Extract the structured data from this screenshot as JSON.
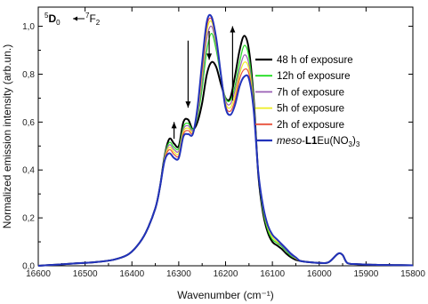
{
  "chart_data": {
    "type": "line",
    "title": "",
    "xlabel": "Wavenumber (cm⁻¹)",
    "ylabel": "Normalized emission intensity (arb.un.)",
    "xlim": [
      16600,
      15800
    ],
    "ylim": [
      0.0,
      1.08
    ],
    "x_reversed": true,
    "grid": false,
    "legend_position": "top-right",
    "x_ticks": [
      {
        "value": 16600,
        "label": "16600"
      },
      {
        "value": 16500,
        "label": "16500"
      },
      {
        "value": 16400,
        "label": "16400"
      },
      {
        "value": 16300,
        "label": "16300"
      },
      {
        "value": 16200,
        "label": "16200"
      },
      {
        "value": 16100,
        "label": "16100"
      },
      {
        "value": 16000,
        "label": "16000"
      },
      {
        "value": 15900,
        "label": "15900"
      },
      {
        "value": 15800,
        "label": "15800"
      }
    ],
    "y_ticks": [
      {
        "value": 0.0,
        "label": "0,0"
      },
      {
        "value": 0.2,
        "label": "0,2"
      },
      {
        "value": 0.4,
        "label": "0,4"
      },
      {
        "value": 0.6,
        "label": "0,6"
      },
      {
        "value": 0.8,
        "label": "0,8"
      },
      {
        "value": 1.0,
        "label": "1,0"
      }
    ],
    "transition_label": {
      "from_sup": "5",
      "from_main": "D",
      "from_sub": "0",
      "to_sup": "7",
      "to_main": "F",
      "to_sub": "2"
    },
    "arrows": [
      {
        "direction": "up",
        "x": 16310,
        "y_from": 0.53,
        "y_to": 0.6
      },
      {
        "direction": "down",
        "x": 16280,
        "y_from": 0.94,
        "y_to": 0.66
      },
      {
        "direction": "down",
        "x": 16235,
        "y_from": 0.98,
        "y_to": 0.86
      },
      {
        "direction": "up",
        "x": 16185,
        "y_from": 0.69,
        "y_to": 1.0
      }
    ],
    "x": [
      16600,
      16560,
      16520,
      16480,
      16440,
      16410,
      16390,
      16370,
      16350,
      16340,
      16330,
      16320,
      16310,
      16300,
      16290,
      16280,
      16270,
      16260,
      16250,
      16240,
      16230,
      16220,
      16210,
      16200,
      16190,
      16180,
      16170,
      16160,
      16150,
      16140,
      16130,
      16120,
      16110,
      16100,
      16090,
      16080,
      16070,
      16060,
      16050,
      16040,
      16020,
      16000,
      15980,
      15960,
      15950,
      15940,
      15920,
      15880,
      15840,
      15800
    ],
    "series": [
      {
        "name": "48 h of exposure",
        "color": "#000000",
        "values": [
          0.0,
          0.005,
          0.01,
          0.015,
          0.025,
          0.045,
          0.08,
          0.14,
          0.24,
          0.33,
          0.46,
          0.53,
          0.51,
          0.5,
          0.6,
          0.61,
          0.57,
          0.6,
          0.68,
          0.8,
          0.85,
          0.83,
          0.76,
          0.7,
          0.7,
          0.79,
          0.9,
          0.96,
          0.9,
          0.7,
          0.38,
          0.22,
          0.14,
          0.1,
          0.085,
          0.07,
          0.05,
          0.035,
          0.025,
          0.02,
          0.015,
          0.012,
          0.015,
          0.05,
          0.045,
          0.012,
          0.007,
          0.004,
          0.003,
          0.002
        ]
      },
      {
        "name": "12h of exposure",
        "color": "#22dd22",
        "values": [
          0.0,
          0.005,
          0.01,
          0.015,
          0.025,
          0.045,
          0.08,
          0.14,
          0.24,
          0.33,
          0.46,
          0.515,
          0.495,
          0.49,
          0.58,
          0.595,
          0.57,
          0.62,
          0.74,
          0.9,
          0.97,
          0.9,
          0.79,
          0.7,
          0.69,
          0.75,
          0.85,
          0.92,
          0.87,
          0.69,
          0.39,
          0.23,
          0.15,
          0.11,
          0.095,
          0.08,
          0.06,
          0.04,
          0.03,
          0.02,
          0.015,
          0.012,
          0.015,
          0.05,
          0.045,
          0.012,
          0.007,
          0.004,
          0.003,
          0.002
        ]
      },
      {
        "name": "7h of exposure",
        "color": "#9a5fb5",
        "values": [
          0.0,
          0.005,
          0.01,
          0.015,
          0.025,
          0.045,
          0.08,
          0.14,
          0.24,
          0.33,
          0.455,
          0.505,
          0.485,
          0.48,
          0.57,
          0.585,
          0.565,
          0.63,
          0.77,
          0.95,
          1.0,
          0.92,
          0.8,
          0.69,
          0.675,
          0.73,
          0.82,
          0.88,
          0.84,
          0.68,
          0.39,
          0.24,
          0.16,
          0.12,
          0.1,
          0.085,
          0.065,
          0.045,
          0.03,
          0.02,
          0.015,
          0.012,
          0.015,
          0.05,
          0.045,
          0.012,
          0.007,
          0.004,
          0.003,
          0.002
        ]
      },
      {
        "name": "5h of exposure",
        "color": "#eeee22",
        "values": [
          0.0,
          0.005,
          0.01,
          0.015,
          0.025,
          0.045,
          0.08,
          0.14,
          0.24,
          0.33,
          0.45,
          0.495,
          0.475,
          0.47,
          0.56,
          0.575,
          0.56,
          0.64,
          0.8,
          0.98,
          1.02,
          0.93,
          0.8,
          0.68,
          0.66,
          0.71,
          0.8,
          0.85,
          0.82,
          0.67,
          0.39,
          0.24,
          0.16,
          0.12,
          0.1,
          0.09,
          0.07,
          0.05,
          0.03,
          0.02,
          0.015,
          0.012,
          0.015,
          0.05,
          0.045,
          0.012,
          0.007,
          0.004,
          0.003,
          0.002
        ]
      },
      {
        "name": "2h of exposure",
        "color": "#e8503a",
        "values": [
          0.0,
          0.005,
          0.01,
          0.015,
          0.025,
          0.045,
          0.08,
          0.14,
          0.24,
          0.33,
          0.445,
          0.485,
          0.465,
          0.46,
          0.55,
          0.565,
          0.555,
          0.65,
          0.82,
          1.0,
          1.03,
          0.94,
          0.8,
          0.67,
          0.645,
          0.69,
          0.78,
          0.82,
          0.8,
          0.66,
          0.39,
          0.25,
          0.17,
          0.13,
          0.11,
          0.09,
          0.07,
          0.05,
          0.035,
          0.02,
          0.015,
          0.012,
          0.015,
          0.05,
          0.045,
          0.012,
          0.007,
          0.004,
          0.003,
          0.002
        ]
      },
      {
        "name": "meso-L1Eu(NO3)3",
        "color": "#2233bb",
        "label_parts": [
          {
            "text": "meso",
            "style": "italic"
          },
          {
            "text": "-",
            "style": "normal"
          },
          {
            "text": "L1",
            "style": "bold"
          },
          {
            "text": "Eu(NO",
            "style": "normal"
          },
          {
            "text": "3",
            "style": "sub"
          },
          {
            "text": ")",
            "style": "normal"
          },
          {
            "text": "3",
            "style": "sub"
          }
        ],
        "values": [
          0.0,
          0.005,
          0.01,
          0.015,
          0.025,
          0.045,
          0.08,
          0.14,
          0.24,
          0.33,
          0.44,
          0.47,
          0.45,
          0.45,
          0.54,
          0.55,
          0.55,
          0.66,
          0.85,
          1.02,
          1.04,
          0.95,
          0.8,
          0.66,
          0.63,
          0.67,
          0.75,
          0.79,
          0.78,
          0.65,
          0.39,
          0.25,
          0.17,
          0.13,
          0.11,
          0.09,
          0.07,
          0.05,
          0.035,
          0.02,
          0.015,
          0.012,
          0.015,
          0.05,
          0.045,
          0.012,
          0.007,
          0.004,
          0.003,
          0.002
        ]
      }
    ]
  }
}
